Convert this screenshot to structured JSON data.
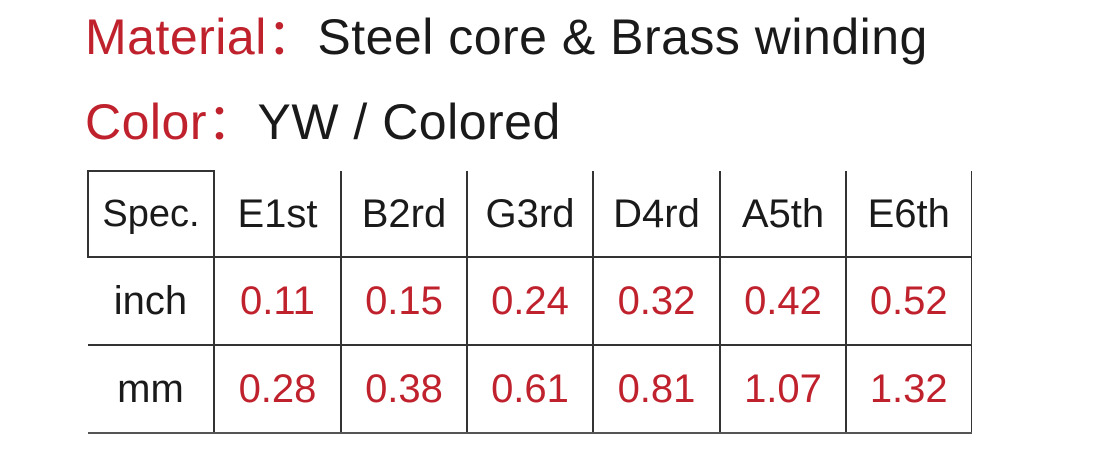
{
  "material": {
    "label": "Material：",
    "value": "Steel core & Brass winding"
  },
  "color": {
    "label": "Color：",
    "value": "YW / Colored"
  },
  "colors": {
    "label_red": "#c0222d",
    "text_dark": "#1a1a1a",
    "border": "#333333"
  },
  "table": {
    "header": [
      "Spec.",
      "E1st",
      "B2rd",
      "G3rd",
      "D4rd",
      "A5th",
      "E6th"
    ],
    "rows": [
      {
        "label": "inch",
        "values": [
          "0.11",
          "0.15",
          "0.24",
          "0.32",
          "0.42",
          "0.52"
        ]
      },
      {
        "label": "mm",
        "values": [
          "0.28",
          "0.38",
          "0.61",
          "0.81",
          "1.07",
          "1.32"
        ]
      }
    ]
  }
}
